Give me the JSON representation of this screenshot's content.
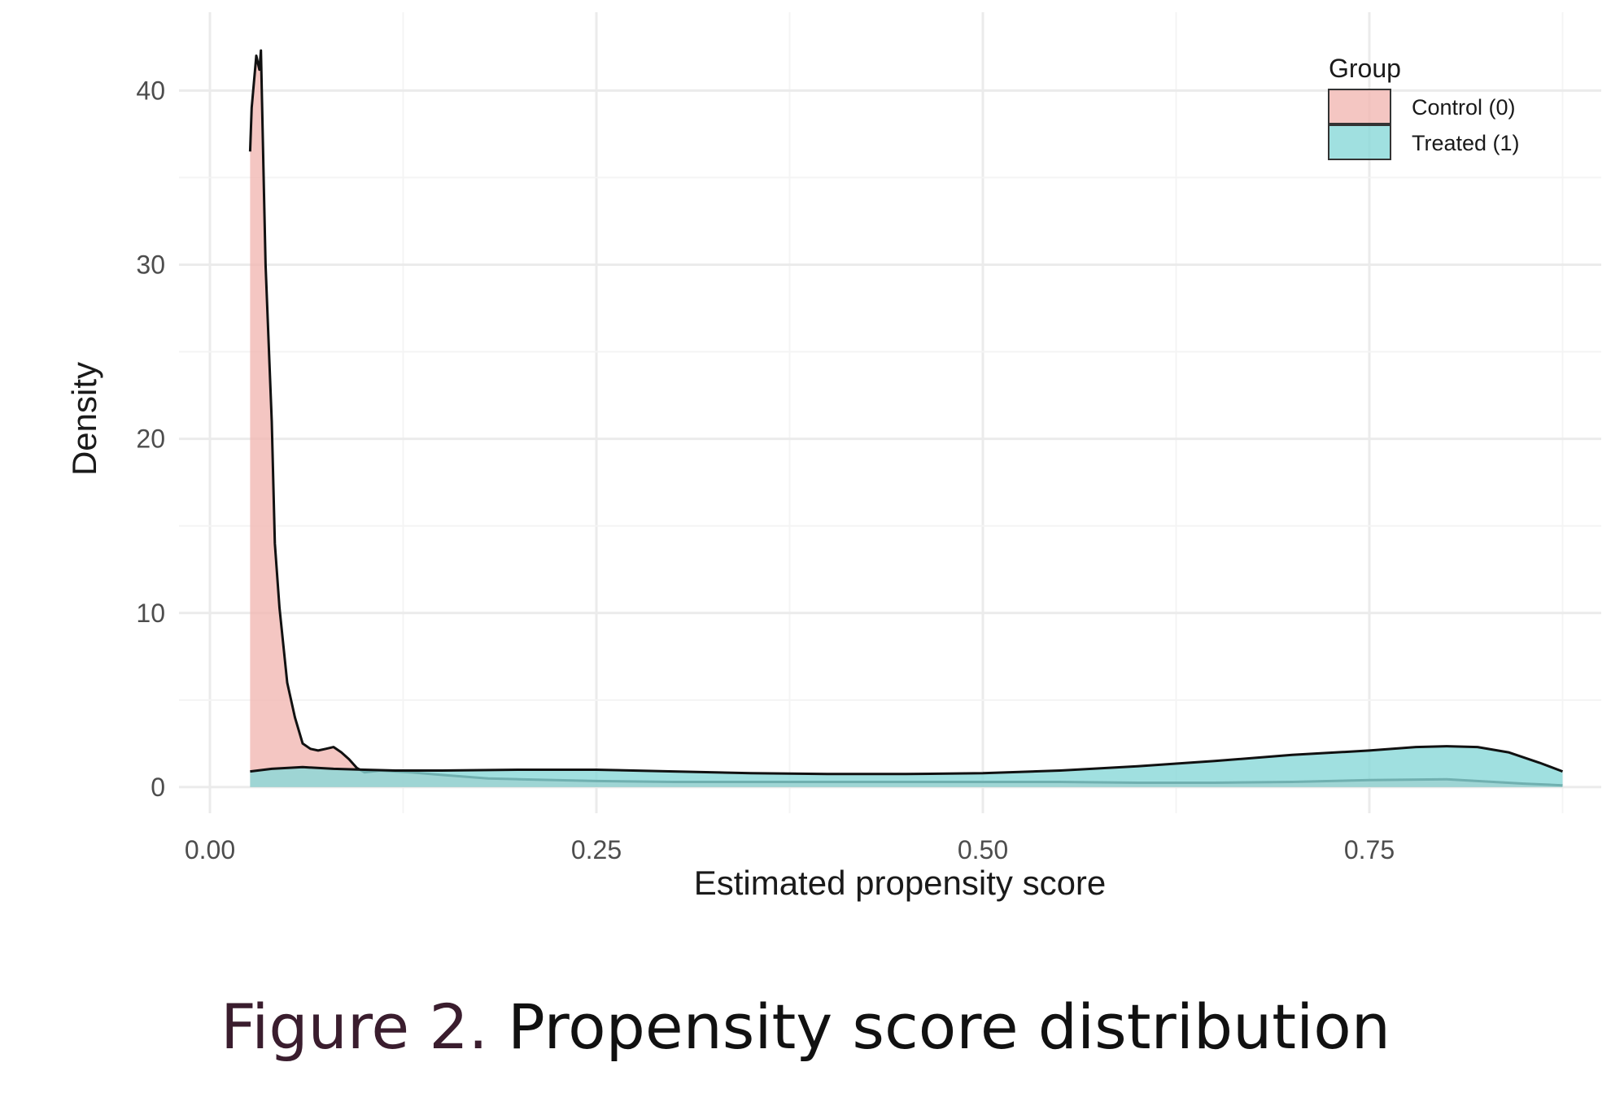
{
  "chart_data": {
    "type": "area",
    "xlabel": "Estimated propensity score",
    "ylabel": "Density",
    "xlim": [
      -0.02,
      0.9
    ],
    "ylim": [
      -1.5,
      44.5
    ],
    "x_ticks": [
      0.0,
      0.25,
      0.5,
      0.75
    ],
    "x_tick_labels": [
      "0.00",
      "0.25",
      "0.50",
      "0.75"
    ],
    "y_ticks": [
      0,
      10,
      20,
      30,
      40
    ],
    "y_tick_labels": [
      "0",
      "10",
      "20",
      "30",
      "40"
    ],
    "grid": true,
    "legend": {
      "title": "Group",
      "placement": "top-right"
    },
    "series": [
      {
        "name": "Control (0)",
        "color": "#f1b8b3",
        "x": [
          0.026,
          0.027,
          0.03,
          0.032,
          0.033,
          0.035,
          0.036,
          0.04,
          0.042,
          0.045,
          0.05,
          0.055,
          0.06,
          0.065,
          0.07,
          0.075,
          0.08,
          0.085,
          0.09,
          0.095,
          0.1,
          0.105,
          0.11,
          0.12,
          0.13,
          0.15,
          0.18,
          0.2,
          0.25,
          0.3,
          0.35,
          0.4,
          0.45,
          0.5,
          0.55,
          0.6,
          0.65,
          0.7,
          0.75,
          0.8,
          0.85,
          0.875
        ],
        "values": [
          36.5,
          39,
          42,
          41.2,
          42.3,
          34,
          30,
          21,
          14,
          10.3,
          6,
          4,
          2.5,
          2.2,
          2.1,
          2.2,
          2.3,
          2.0,
          1.6,
          1.1,
          0.85,
          0.9,
          0.95,
          0.9,
          0.85,
          0.7,
          0.5,
          0.45,
          0.35,
          0.3,
          0.3,
          0.3,
          0.3,
          0.3,
          0.3,
          0.25,
          0.25,
          0.3,
          0.4,
          0.45,
          0.2,
          0.1
        ]
      },
      {
        "name": "Treated (1)",
        "color": "#88d8d8",
        "x": [
          0.026,
          0.04,
          0.06,
          0.08,
          0.1,
          0.12,
          0.15,
          0.2,
          0.25,
          0.3,
          0.35,
          0.4,
          0.45,
          0.5,
          0.55,
          0.6,
          0.65,
          0.7,
          0.75,
          0.78,
          0.8,
          0.82,
          0.84,
          0.86,
          0.875
        ],
        "values": [
          0.9,
          1.05,
          1.15,
          1.05,
          1.0,
          0.95,
          0.95,
          1.0,
          1.0,
          0.9,
          0.8,
          0.75,
          0.75,
          0.8,
          0.95,
          1.2,
          1.5,
          1.85,
          2.1,
          2.3,
          2.35,
          2.3,
          2.0,
          1.4,
          0.9
        ]
      }
    ]
  },
  "caption": {
    "label": "Figure 2.",
    "text": "Propensity score distribution"
  }
}
